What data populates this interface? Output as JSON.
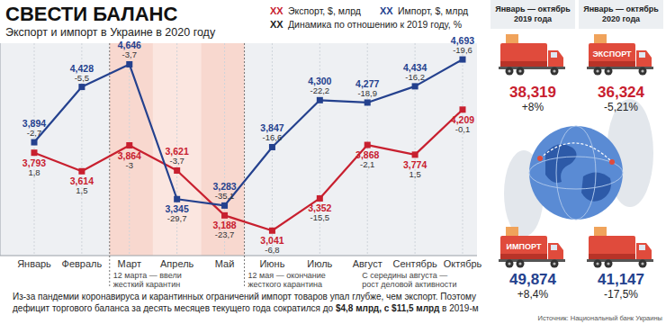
{
  "chart_data": {
    "type": "line",
    "title": "СВЕСТИ БАЛАНС",
    "subtitle": "Экспорт и импорт в Украине в 2020 году",
    "categories": [
      "Январь",
      "Февраль",
      "Март",
      "Апрель",
      "Май",
      "Июнь",
      "Июль",
      "Август",
      "Сентябрь",
      "Октябрь"
    ],
    "series": [
      {
        "name": "Экспорт, $, млрд",
        "color": "#c8202f",
        "marker": "square",
        "values": [
          3.793,
          3.614,
          3.864,
          3.621,
          3.188,
          3.041,
          3.352,
          3.868,
          3.774,
          4.209
        ],
        "value_labels": [
          "3,793",
          "3,614",
          "3,864",
          "3,621",
          "3,188",
          "3,041",
          "3,352",
          "3,868",
          "3,774",
          "4,209"
        ],
        "changes": [
          "1,8",
          "1,5",
          "-3",
          "-3,7",
          "-23,7",
          "-6,8",
          "-15,5",
          "-2,1",
          "1,5",
          "-0,1"
        ]
      },
      {
        "name": "Импорт, $, млрд",
        "color": "#24418e",
        "marker": "square",
        "values": [
          3.894,
          4.428,
          4.646,
          3.345,
          3.283,
          3.847,
          4.3,
          4.277,
          4.434,
          4.693
        ],
        "value_labels": [
          "3,894",
          "4,428",
          "4,646",
          "3,345",
          "3,283",
          "3,847",
          "4,300",
          "4,277",
          "4,434",
          "4,693"
        ],
        "changes": [
          "-2,7",
          "-5,5",
          "-3,7",
          "-29,7",
          "-35,1",
          "-16,6",
          "-22,2",
          "-18,9",
          "-16,2",
          "-19,6"
        ]
      }
    ],
    "legend_symbol": "XX",
    "legend_note": "Динамика по отношению к 2019 году, %",
    "ylim": [
      2.8,
      4.85
    ],
    "yticks": [],
    "tick_labels": "x",
    "grid": true,
    "data_labels": true,
    "annotations": [
      {
        "category": "Март",
        "text": [
          "12 марта — ввели",
          "жесткий карантин"
        ]
      },
      {
        "category": "Май",
        "text": [
          "12 мая — окончание",
          "жесткого карантина"
        ]
      },
      {
        "category": "Август",
        "text": [
          "С середины августа —",
          "рост деловой активности"
        ]
      }
    ]
  },
  "panel": {
    "periods": [
      [
        "Январь — октябрь",
        "2019 года"
      ],
      [
        "Январь — октябрь",
        "2020 года"
      ]
    ],
    "blocks": [
      {
        "label": "ЭКСПОРТ",
        "color": "#c8202f",
        "totals": [
          "38,319",
          "36,324"
        ],
        "changes": [
          "+8%",
          "-5,21%"
        ]
      },
      {
        "label": "ИМПОРТ",
        "color": "#24418e",
        "totals": [
          "49,874",
          "41,147"
        ],
        "changes": [
          "+8,4%",
          "-17,5%"
        ]
      }
    ]
  },
  "footer": {
    "lines": [
      [
        {
          "text": "Из-за пандемии коронавируса и карантинных ограничений импорт товаров упал глубже, чем экспорт. Поэтому",
          "bold": false
        }
      ],
      [
        {
          "text": "дефицит торгового баланса за десять месяцев текущего года сократился до ",
          "bold": false
        },
        {
          "text": "$4,8 млрд, с $11,5 млрд",
          "bold": true
        },
        {
          "text": " в 2019-м",
          "bold": false
        }
      ]
    ],
    "source": "Источник: Национальный банк Украины"
  }
}
